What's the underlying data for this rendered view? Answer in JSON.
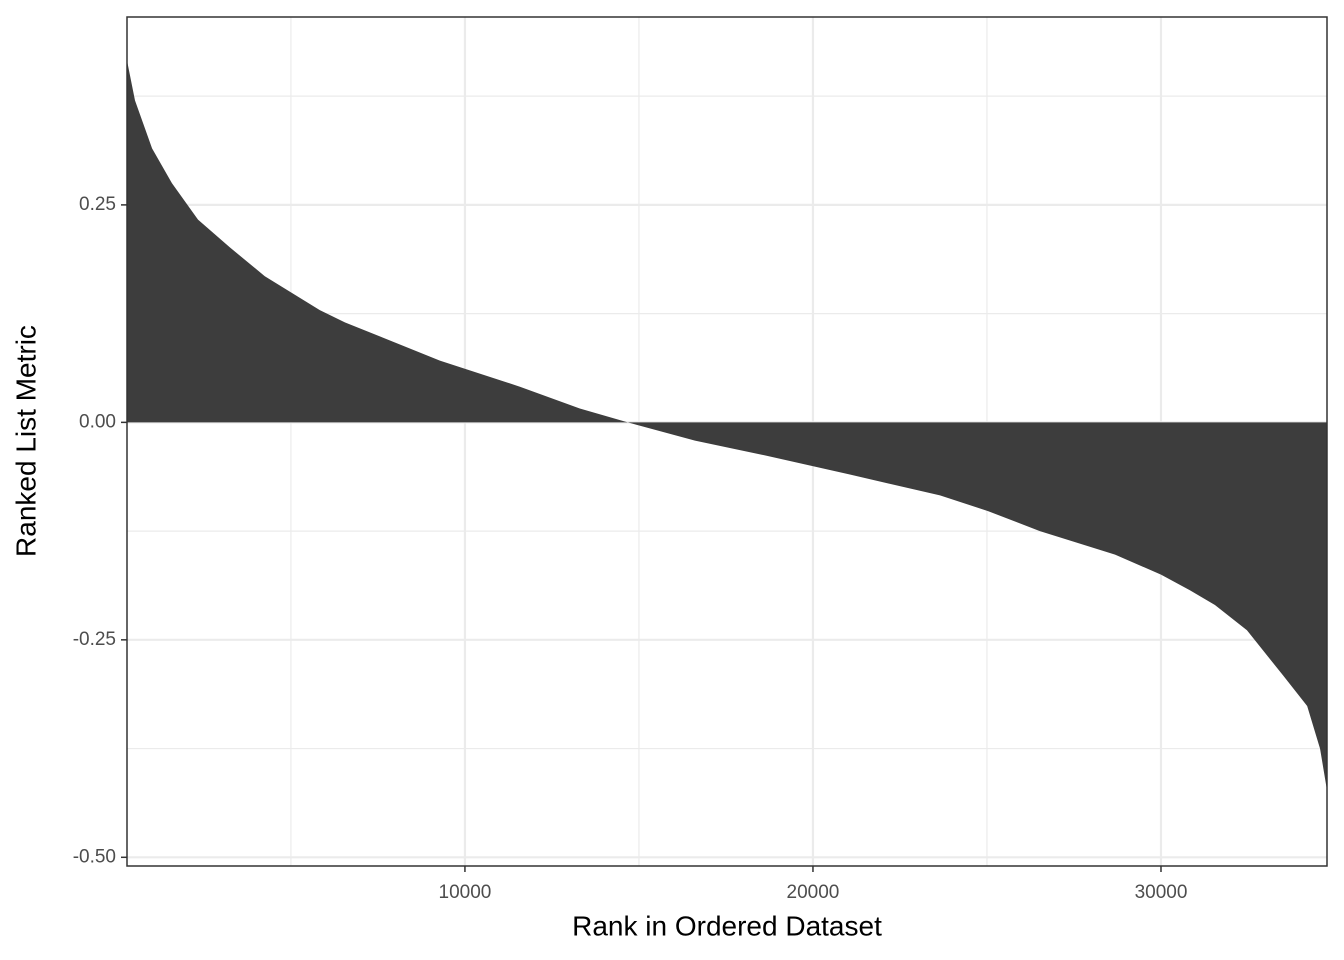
{
  "chart_data": {
    "type": "area",
    "x_label": "Rank in Ordered Dataset",
    "y_label": "Ranked List Metric",
    "x": [
      290,
      520,
      1010,
      1580,
      2330,
      3250,
      4250,
      5830,
      6550,
      9280,
      11580,
      13300,
      14680,
      16610,
      18620,
      21060,
      23650,
      25030,
      26520,
      28680,
      30000,
      30830,
      31550,
      32470,
      33510,
      34200,
      34570,
      34770
    ],
    "values": [
      0.416,
      0.37,
      0.315,
      0.275,
      0.233,
      0.201,
      0.168,
      0.129,
      0.115,
      0.071,
      0.041,
      0.016,
      0,
      -0.021,
      -0.038,
      -0.06,
      -0.084,
      -0.102,
      -0.125,
      -0.152,
      -0.175,
      -0.193,
      -0.21,
      -0.239,
      -0.291,
      -0.326,
      -0.375,
      -0.423
    ],
    "color": "#3d3d3d",
    "xlim": [
      290,
      34770
    ],
    "ylim": [
      -0.51,
      0.466
    ],
    "xticks": [
      10000,
      20000,
      30000
    ],
    "yticks": [
      {
        "value": 0.25,
        "label": "0.25"
      },
      {
        "value": 0,
        "label": "0.00"
      },
      {
        "value": -0.25,
        "label": "-0.25"
      },
      {
        "value": -0.5,
        "label": "-0.50"
      }
    ],
    "x_minor_ticks": [
      5000,
      15000,
      25000
    ],
    "y_minor_ticks": [
      0.375,
      0.125,
      -0.125,
      -0.375
    ],
    "grid": true
  }
}
